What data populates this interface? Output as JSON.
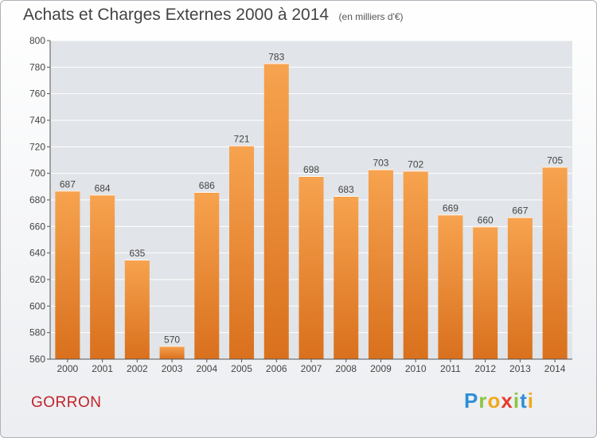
{
  "title": "Achats et Charges Externes 2000 à 2014",
  "subtitle": "(en milliers d'€)",
  "city": "GORRON",
  "logo": {
    "text": "Proxiti",
    "letters": [
      "P",
      "r",
      "o",
      "x",
      "i",
      "t",
      "i"
    ],
    "colors": [
      "#2e8fd6",
      "#8ac43f",
      "#f0a81e",
      "#e63a2e",
      "#8ac43f",
      "#2e8fd6",
      "#f0a81e"
    ]
  },
  "colors": {
    "bar_light": "#f7a34f",
    "bar_dark": "#d9701d",
    "axis": "#555555",
    "grid": "#ffffff",
    "plot_bg": "#e1e4e8",
    "title": "#444444",
    "city": "#c2222a"
  },
  "chart_data": {
    "type": "bar",
    "title": "Achats et Charges Externes 2000 à 2014",
    "subtitle": "(en milliers d'€)",
    "categories": [
      "2000",
      "2001",
      "2002",
      "2003",
      "2004",
      "2005",
      "2006",
      "2007",
      "2008",
      "2009",
      "2010",
      "2011",
      "2012",
      "2013",
      "2014"
    ],
    "values": [
      687,
      684,
      635,
      570,
      686,
      721,
      783,
      698,
      683,
      703,
      702,
      669,
      660,
      667,
      705
    ],
    "ylim": [
      560,
      800
    ],
    "yticks": [
      560,
      580,
      600,
      620,
      640,
      660,
      680,
      700,
      720,
      740,
      760,
      780,
      800
    ],
    "grid": true,
    "xlabel": "",
    "ylabel": ""
  }
}
